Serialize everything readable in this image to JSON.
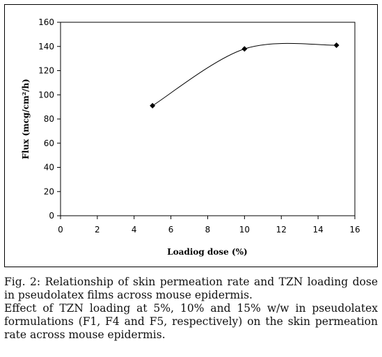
{
  "chart_data": {
    "type": "line",
    "x": [
      5,
      10,
      15
    ],
    "series": [
      {
        "values": [
          91,
          138,
          141
        ]
      }
    ],
    "xlabel": "Loadiog dose (%)",
    "ylabel": "Flux (mcg/cm²/h)",
    "xlim": [
      0,
      16
    ],
    "ylim": [
      0,
      160
    ],
    "xticks": [
      0,
      2,
      4,
      6,
      8,
      10,
      12,
      14,
      16
    ],
    "yticks": [
      0,
      20,
      40,
      60,
      80,
      100,
      120,
      140,
      160
    ],
    "smooth": true,
    "marker": "diamond",
    "grid": false,
    "legend": "none"
  },
  "caption": {
    "title": "Fig. 2: Relationship of skin permeation rate and TZN loading dose in pseudolatex films across mouse epidermis.",
    "body": "Effect of TZN loading at 5%, 10% and 15% w/w in pseudolatex formulations (F1, F4 and F5, respectively) on the skin permeation rate across mouse epidermis."
  }
}
